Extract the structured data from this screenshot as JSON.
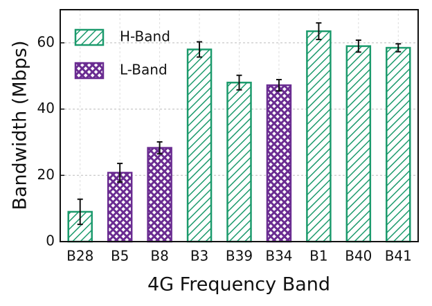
{
  "chart_data": {
    "type": "bar",
    "x_label": "4G Frequency Band",
    "y_label": "Bandwidth (Mbps)",
    "categories": [
      "B28",
      "B5",
      "B8",
      "B3",
      "B39",
      "B34",
      "B1",
      "B40",
      "B41"
    ],
    "series": [
      {
        "name": "H-Band",
        "color": "#1b9a6c",
        "hatch": "diagonal",
        "values": [
          9,
          null,
          null,
          58,
          48,
          null,
          63.5,
          59,
          58.5
        ],
        "errors": [
          3.8,
          null,
          null,
          2.3,
          2.2,
          null,
          2.5,
          1.8,
          1.2
        ]
      },
      {
        "name": "L-Band",
        "color": "#6a2c91",
        "hatch": "cross",
        "values": [
          null,
          20.8,
          28.3,
          null,
          null,
          47.2,
          null,
          null,
          null
        ],
        "errors": [
          null,
          2.8,
          1.8,
          null,
          null,
          1.7,
          null,
          null,
          null
        ]
      }
    ],
    "ylim": [
      0,
      70
    ],
    "yticks": [
      0,
      20,
      40,
      60
    ],
    "grid": true,
    "legend": "upper left"
  }
}
